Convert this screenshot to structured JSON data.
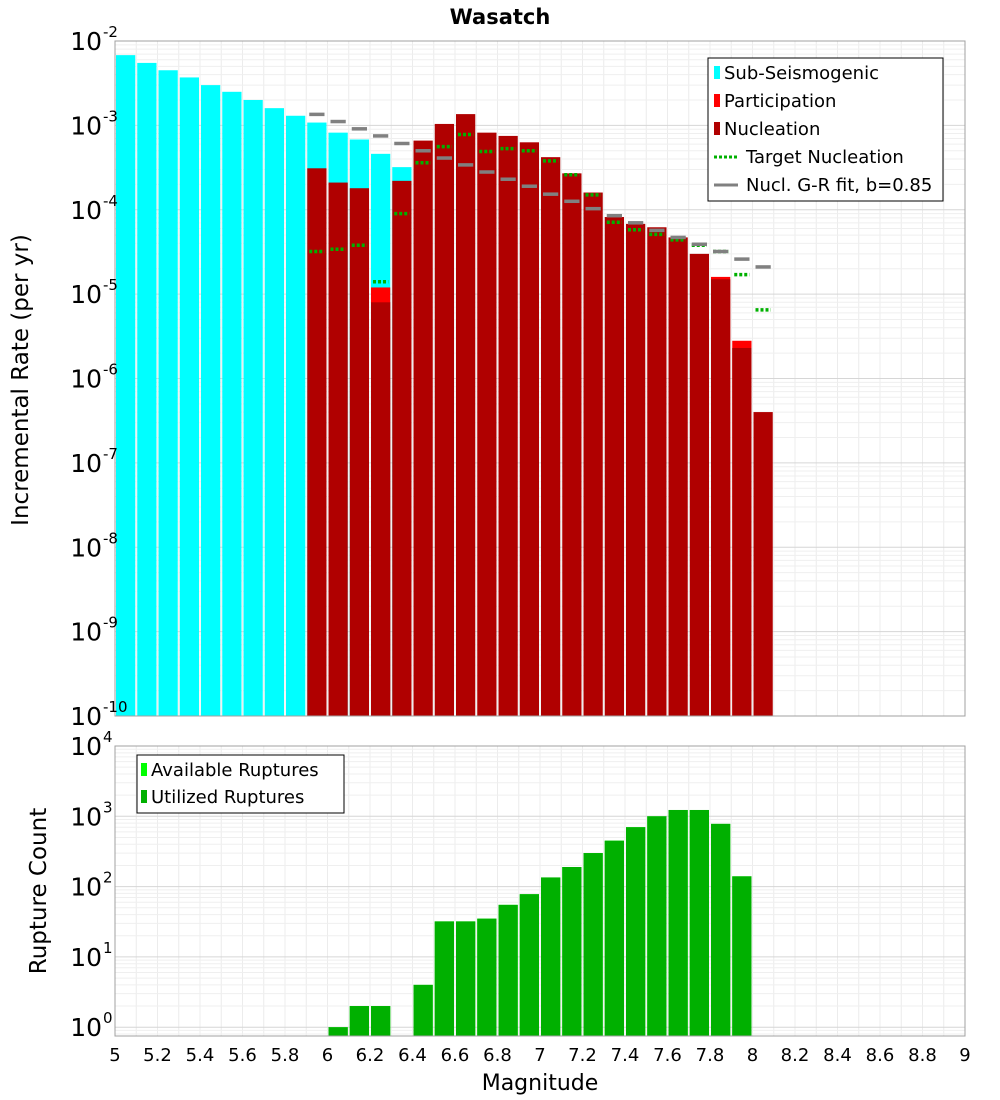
{
  "chart_data": [
    {
      "type": "bar",
      "title": "Wasatch",
      "xlabel": "",
      "ylabel": "Incremental Rate (per yr)",
      "xlim": [
        5,
        9
      ],
      "ylim": [
        1e-10,
        0.01
      ],
      "yscale": "log",
      "grid": true,
      "legend_position": "top-right",
      "bin_width": 0.1,
      "series": [
        {
          "name": "Sub-Seismogenic",
          "style": "bar",
          "color": "#00ffff",
          "x": [
            5.05,
            5.15,
            5.25,
            5.35,
            5.45,
            5.55,
            5.65,
            5.75,
            5.85,
            5.95,
            6.05,
            6.15,
            6.25,
            6.35
          ],
          "values": [
            0.0068,
            0.0055,
            0.0045,
            0.0037,
            0.003,
            0.0025,
            0.002,
            0.0016,
            0.0013,
            0.00108,
            0.00082,
            0.00068,
            0.00046,
            0.00032
          ]
        },
        {
          "name": "Participation",
          "style": "bar",
          "color": "#ff0000",
          "x": [
            6.25,
            7.85,
            7.95
          ],
          "values": [
            1.2e-05,
            1.6e-05,
            2.8e-06
          ]
        },
        {
          "name": "Nucleation",
          "style": "bar",
          "color": "#b00000",
          "x": [
            5.95,
            6.05,
            6.15,
            6.25,
            6.35,
            6.45,
            6.55,
            6.65,
            6.75,
            6.85,
            6.95,
            7.05,
            7.15,
            7.25,
            7.35,
            7.45,
            7.55,
            7.65,
            7.75,
            7.85,
            7.95,
            8.05
          ],
          "values": [
            0.00031,
            0.00021,
            0.00018,
            8e-06,
            0.00022,
            0.00066,
            0.00104,
            0.00136,
            0.00082,
            0.00075,
            0.00063,
            0.00042,
            0.00027,
            0.00016,
            8.2e-05,
            6.8e-05,
            6.2e-05,
            4.7e-05,
            3e-05,
            1.5e-05,
            2.3e-06,
            4e-07
          ]
        },
        {
          "name": "Target Nucleation",
          "style": "dotted-segment",
          "color": "#00b000",
          "x": [
            5.95,
            6.05,
            6.15,
            6.25,
            6.35,
            6.45,
            6.55,
            6.65,
            6.75,
            6.85,
            6.95,
            7.05,
            7.15,
            7.25,
            7.35,
            7.45,
            7.55,
            7.65,
            7.75,
            7.85,
            7.95,
            8.05
          ],
          "values": [
            3.2e-05,
            3.4e-05,
            3.8e-05,
            1.4e-05,
            9e-05,
            0.00036,
            0.00056,
            0.00078,
            0.00049,
            0.00053,
            0.0005,
            0.00038,
            0.00026,
            0.00015,
            7.1e-05,
            5.8e-05,
            5.1e-05,
            4.4e-05,
            3.8e-05,
            3.2e-05,
            1.7e-05,
            6.5e-06
          ]
        },
        {
          "name": "Nucl. G-R fit, b=0.85",
          "style": "segment",
          "color": "#808080",
          "x": [
            5.95,
            6.05,
            6.15,
            6.25,
            6.35,
            6.45,
            6.55,
            6.65,
            6.75,
            6.85,
            6.95,
            7.05,
            7.15,
            7.25,
            7.35,
            7.45,
            7.55,
            7.65,
            7.75,
            7.85,
            7.95,
            8.05
          ],
          "values": [
            0.00135,
            0.00111,
            0.00091,
            0.00075,
            0.00061,
            0.0005,
            0.00041,
            0.00034,
            0.00028,
            0.00023,
            0.00019,
            0.000153,
            0.000126,
            0.000103,
            8.5e-05,
            7e-05,
            5.7e-05,
            4.7e-05,
            3.9e-05,
            3.2e-05,
            2.6e-05,
            2.1e-05
          ]
        }
      ]
    },
    {
      "type": "bar",
      "title": "",
      "xlabel": "Magnitude",
      "ylabel": "Rupture Count",
      "xlim": [
        5,
        9
      ],
      "ylim": [
        0.75,
        10000
      ],
      "yscale": "log",
      "grid": true,
      "legend_position": "top-left",
      "bin_width": 0.1,
      "series": [
        {
          "name": "Available Ruptures",
          "style": "bar",
          "color": "#00ff00",
          "x": [
            6.05,
            6.15,
            6.25,
            6.45,
            6.55,
            6.65,
            6.75,
            6.85,
            6.95,
            7.05,
            7.15,
            7.25,
            7.35,
            7.45,
            7.55,
            7.65,
            7.75,
            7.85,
            7.95
          ],
          "values": [
            1,
            2,
            2,
            4,
            32,
            32,
            35,
            55,
            78,
            135,
            190,
            300,
            450,
            700,
            1000,
            1230,
            1230,
            780,
            140
          ]
        },
        {
          "name": "Utilized Ruptures",
          "style": "bar",
          "color": "#00b000",
          "x": [
            6.05,
            6.15,
            6.25,
            6.45,
            6.55,
            6.65,
            6.75,
            6.85,
            6.95,
            7.05,
            7.15,
            7.25,
            7.35,
            7.45,
            7.55,
            7.65,
            7.75,
            7.85,
            7.95
          ],
          "values": [
            1,
            2,
            2,
            4,
            32,
            32,
            35,
            55,
            78,
            135,
            190,
            300,
            450,
            700,
            1000,
            1230,
            1230,
            780,
            140
          ]
        }
      ]
    }
  ],
  "x_tick_labels": [
    "5",
    "5.2",
    "5.4",
    "5.6",
    "5.8",
    "6",
    "6.2",
    "6.4",
    "6.6",
    "6.8",
    "7",
    "7.2",
    "7.4",
    "7.6",
    "7.8",
    "8",
    "8.2",
    "8.4",
    "8.6",
    "8.8",
    "9"
  ],
  "top_y_ticks": [
    {
      "base": "10",
      "exp": "-2"
    },
    {
      "base": "10",
      "exp": "-3"
    },
    {
      "base": "10",
      "exp": "-4"
    },
    {
      "base": "10",
      "exp": "-5"
    },
    {
      "base": "10",
      "exp": "-6"
    },
    {
      "base": "10",
      "exp": "-7"
    },
    {
      "base": "10",
      "exp": "-8"
    },
    {
      "base": "10",
      "exp": "-9"
    },
    {
      "base": "10",
      "exp": "-10"
    }
  ],
  "bottom_y_ticks": [
    {
      "base": "10",
      "exp": "4"
    },
    {
      "base": "10",
      "exp": "3"
    },
    {
      "base": "10",
      "exp": "2"
    },
    {
      "base": "10",
      "exp": "1"
    },
    {
      "base": "10",
      "exp": "0"
    }
  ]
}
